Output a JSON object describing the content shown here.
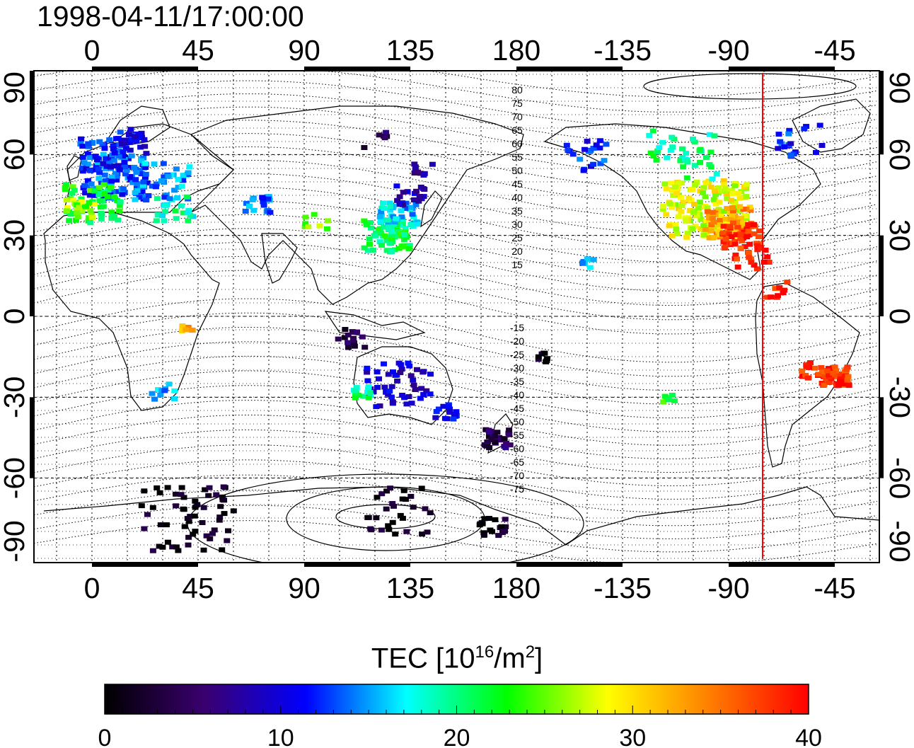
{
  "title": "1998-04-11/17:00:00",
  "colorbar": {
    "label_text": "TEC  [10",
    "label_exp1": "16",
    "label_mid": "/m",
    "label_exp2": "2",
    "label_end": "]",
    "ticks": [
      "0",
      "10",
      "20",
      "30",
      "40"
    ],
    "range": [
      0,
      40
    ],
    "stops": [
      "#000000",
      "#3a0070",
      "#0000ff",
      "#00ffff",
      "#00ff00",
      "#ffff00",
      "#ff8000",
      "#ff0000"
    ]
  },
  "map": {
    "lon_ticks": [
      "0",
      "45",
      "90",
      "135",
      "180",
      "-135",
      "-90",
      "-45"
    ],
    "lat_ticks": [
      "90",
      "60",
      "30",
      "0",
      "-30",
      "-60",
      "-90"
    ],
    "contour_labels_north": [
      "80",
      "75",
      "70",
      "65",
      "60",
      "55",
      "50",
      "45",
      "40",
      "35",
      "30",
      "25",
      "20",
      "15"
    ],
    "contour_labels_south": [
      "-15",
      "-20",
      "-25",
      "-30",
      "-35",
      "-40",
      "-45",
      "-50",
      "-55",
      "-60",
      "-65",
      "-70",
      "-75"
    ],
    "terminator_color": "#ff0000",
    "colors": {
      "frame": "#000000",
      "grid": "#000000",
      "terminator": "#ff0000"
    }
  }
}
